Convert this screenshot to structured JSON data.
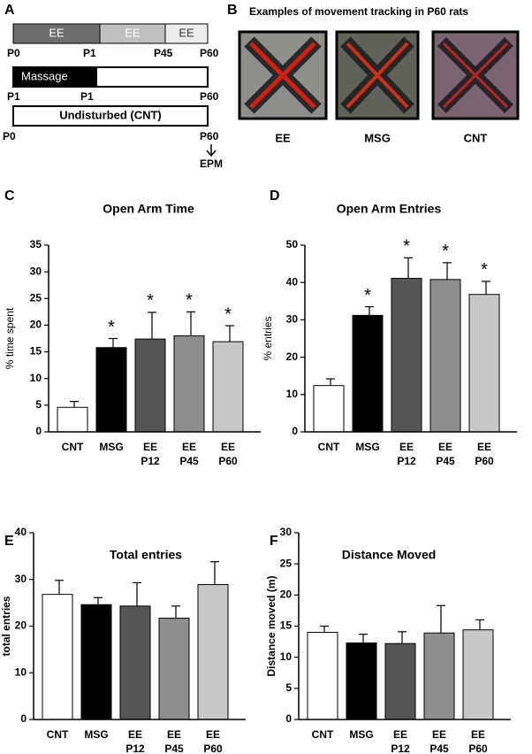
{
  "panel_a": {
    "label": "A",
    "row1": {
      "segments": [
        "EE",
        "EE",
        "EE"
      ],
      "ticks": [
        "P0",
        "P1",
        "P45",
        "P60"
      ]
    },
    "row2": {
      "segment": "Massage",
      "ticks": [
        "P1",
        "P1",
        "P60"
      ]
    },
    "row3": {
      "segment": "Undisturbed (CNT)",
      "ticks": [
        "P0",
        "P60"
      ],
      "outcome": "EPM"
    }
  },
  "panel_b": {
    "label": "B",
    "title": "Examples of movement tracking in P60 rats",
    "captions": [
      "EE",
      "MSG",
      "CNT"
    ]
  },
  "chart_data": [
    {
      "label": "C",
      "type": "bar",
      "title": "Open Arm Time",
      "y_label": "% time spent",
      "categories": [
        "CNT",
        "MSG",
        "EE\nP12",
        "EE\nP45",
        "EE\nP60"
      ],
      "values": [
        4.6,
        15.8,
        17.4,
        18.0,
        16.9
      ],
      "errors": [
        1.1,
        1.7,
        5.0,
        4.5,
        3.0
      ],
      "annotations": [
        null,
        "*",
        "*",
        "*",
        "*"
      ],
      "colors": [
        "#ffffff",
        "#000000",
        "#555555",
        "#8e8e8e",
        "#c8c8c8"
      ],
      "ylim": [
        0,
        35
      ],
      "yticks": [
        0,
        5,
        10,
        15,
        20,
        25,
        30,
        35
      ]
    },
    {
      "label": "D",
      "type": "bar",
      "title": "Open Arm Entries",
      "y_label": "% entries",
      "categories": [
        "CNT",
        "MSG",
        "EE\nP12",
        "EE\nP45",
        "EE\nP60"
      ],
      "values": [
        12.4,
        31.2,
        41.1,
        40.8,
        36.8
      ],
      "errors": [
        1.8,
        2.3,
        5.5,
        4.5,
        3.5
      ],
      "annotations": [
        null,
        "*",
        "*",
        "*",
        "*"
      ],
      "colors": [
        "#ffffff",
        "#000000",
        "#555555",
        "#8e8e8e",
        "#c8c8c8"
      ],
      "ylim": [
        0,
        50
      ],
      "yticks": [
        0,
        10,
        20,
        30,
        40,
        50
      ]
    },
    {
      "label": "E",
      "type": "bar",
      "title": "Total entries",
      "y_label": "total entries",
      "categories": [
        "CNT",
        "MSG",
        "EE\nP12",
        "EE\nP45",
        "EE\nP60"
      ],
      "values": [
        26.8,
        24.6,
        24.3,
        21.7,
        28.9
      ],
      "errors": [
        3.0,
        1.5,
        5.0,
        2.6,
        4.9
      ],
      "colors": [
        "#ffffff",
        "#000000",
        "#555555",
        "#8e8e8e",
        "#c8c8c8"
      ],
      "ylim": [
        0,
        40
      ],
      "yticks": [
        0,
        10,
        20,
        30,
        40
      ]
    },
    {
      "label": "F",
      "type": "bar",
      "title": "Distance Moved",
      "y_label": "Distance moved (m)",
      "categories": [
        "CNT",
        "MSG",
        "EE\nP12",
        "EE\nP45",
        "EE\nP60"
      ],
      "values": [
        14.0,
        12.3,
        12.2,
        13.9,
        14.4
      ],
      "errors": [
        1.0,
        1.4,
        1.9,
        4.4,
        1.6
      ],
      "colors": [
        "#ffffff",
        "#000000",
        "#555555",
        "#8e8e8e",
        "#c8c8c8"
      ],
      "ylim": [
        0,
        30
      ],
      "yticks": [
        0,
        5,
        10,
        15,
        20,
        25,
        30
      ]
    }
  ]
}
